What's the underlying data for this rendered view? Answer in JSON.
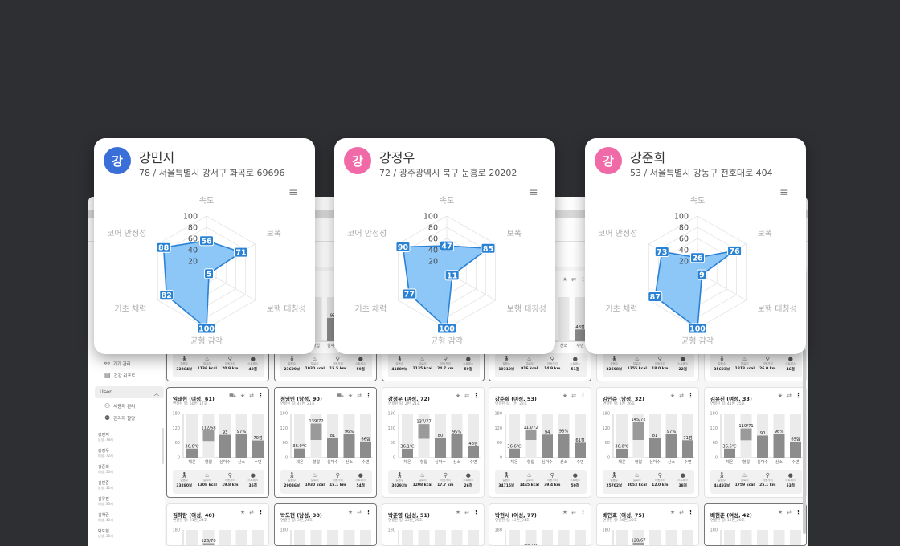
{
  "colors": {
    "background": "#2e2f32",
    "radar_fill": "#7fc1f6",
    "radar_stroke": "#2a82d4",
    "label_box": "#2a82d4",
    "avatar_blue": "#3b6fd8",
    "avatar_pink": "#f06aa8",
    "bar": "#8c8c8c",
    "bar_bg": "#ebebeb"
  },
  "sidebar": {
    "items": [
      {
        "label": "기기 관리",
        "icon": "link-icon"
      },
      {
        "label": "건강 리포트",
        "icon": "report-icon"
      }
    ],
    "section": {
      "label": "User",
      "icon": "chevron-up-icon"
    },
    "sub_items": [
      {
        "label": "사용자 관리",
        "icon": "user-icon"
      },
      {
        "label": "관리자 할당",
        "icon": "users-icon"
      }
    ],
    "users": [
      {
        "name": "강민지",
        "info": "남성, 78세"
      },
      {
        "name": "강정우",
        "info": "여성, 72세"
      },
      {
        "name": "강준희",
        "info": "여성, 53세"
      },
      {
        "name": "김민준",
        "info": "남성, 32세"
      },
      {
        "name": "김유진",
        "info": "여성, 33세"
      },
      {
        "name": "김하람",
        "info": "여성, 40세"
      },
      {
        "name": "박도현",
        "info": "남성, 38세"
      }
    ]
  },
  "bar_chart": {
    "categories": [
      "체온",
      "혈압",
      "심박수",
      "산소",
      "수면"
    ],
    "yticks": [
      0,
      60,
      120,
      180
    ],
    "ylim": [
      0,
      180
    ]
  },
  "stat_labels": [
    "걸음수",
    "칼로리",
    "이동거리",
    "스트레스"
  ],
  "stat_icons": [
    "walk-icon",
    "fire-icon",
    "location-icon",
    "brain-icon"
  ],
  "cards": [
    {
      "row": 0,
      "col": 0,
      "selected": true,
      "chart": {},
      "stats": [
        "32264보",
        "1136 kcal",
        "20.9 km",
        "40점"
      ]
    },
    {
      "row": 0,
      "col": 1,
      "selected": true,
      "chart": {
        "hr": 95,
        "hr_label": "95"
      },
      "stats": [
        "23609보",
        "1030 kcal",
        "15.5 km",
        "59점"
      ]
    },
    {
      "row": 0,
      "col": 2,
      "selected": true,
      "chart": {},
      "stats": [
        "41809보",
        "2135 kcal",
        "24.7 km",
        "59점"
      ]
    },
    {
      "row": 0,
      "col": 3,
      "selected": true,
      "chart": {
        "sleep": 48,
        "sleep_label": "48점"
      },
      "stats": [
        "19319보",
        "916 kcal",
        "14.9 km",
        "51점"
      ]
    },
    {
      "row": 0,
      "col": 4,
      "chart": {},
      "stats": [
        "32598보",
        "1355 kcal",
        "18.0 km",
        "22점"
      ]
    },
    {
      "row": 0,
      "col": 5,
      "chart": {},
      "stats": [
        "35693보",
        "1813 kcal",
        "26.0 km",
        "46점"
      ]
    },
    {
      "row": 1,
      "col": 0,
      "selected": true,
      "alert": true,
      "name": "임태현 (여성, 61)",
      "ring": "연결된 링: 50번_17호",
      "chart": {
        "temp": 36.6,
        "temp_label": "36.6℃",
        "sys": 112,
        "dia": 68,
        "bp_label": "112/68",
        "hr": 93,
        "hr_label": "93",
        "o2": 97,
        "o2_label": "97%",
        "sleep": 70,
        "sleep_label": "70점"
      },
      "stats": [
        "33280보",
        "1308 kcal",
        "19.8 km",
        "35점"
      ]
    },
    {
      "row": 1,
      "col": 1,
      "selected": true,
      "alert": true,
      "name": "정영민 (남성, 90)",
      "ring": "연결된 링: 44번_21호",
      "chart": {
        "temp": 36.9,
        "temp_label": "36.9℃",
        "sys": 139,
        "dia": 72,
        "bp_label": "139/72",
        "hr": 81,
        "hr_label": "81",
        "o2": 96,
        "o2_label": "96%",
        "sleep": 66,
        "sleep_label": "66점"
      },
      "stats": [
        "29036보",
        "1030 kcal",
        "15.1 km",
        "54점"
      ]
    },
    {
      "row": 1,
      "col": 2,
      "name": "강정우 (여성, 72)",
      "ring": "연결된 링: 2번_21호",
      "chart": {
        "temp": 36.1,
        "temp_label": "36.1℃",
        "sys": 137,
        "dia": 77,
        "bp_label": "137/77",
        "hr": 80,
        "hr_label": "80",
        "o2": 95,
        "o2_label": "95%",
        "sleep": 48,
        "sleep_label": "48점"
      },
      "stats": [
        "30293보",
        "1208 kcal",
        "17.7 km",
        "26점"
      ]
    },
    {
      "row": 1,
      "col": 3,
      "name": "강준희 (여성, 53)",
      "ring": "연결된 링: 7번_22호",
      "chart": {
        "temp": 36.6,
        "temp_label": "36.6℃",
        "sys": 113,
        "dia": 72,
        "bp_label": "113/72",
        "hr": 94,
        "hr_label": "94",
        "o2": 98,
        "o2_label": "98%",
        "sleep": 61,
        "sleep_label": "61점"
      },
      "stats": [
        "34715보",
        "1445 kcal",
        "39.4 km",
        "50점"
      ]
    },
    {
      "row": 1,
      "col": 4,
      "name": "김민준 (남성, 32)",
      "ring": "연결된 링: 1번_26호",
      "chart": {
        "temp": 36.0,
        "temp_label": "36.0℃",
        "sys": 145,
        "dia": 72,
        "bp_label": "145/72",
        "hr": 81,
        "hr_label": "81",
        "o2": 97,
        "o2_label": "97%",
        "sleep": 71,
        "sleep_label": "71점"
      },
      "stats": [
        "25702보",
        "3053 kcal",
        "12.0 km",
        "38점"
      ]
    },
    {
      "row": 1,
      "col": 5,
      "name": "김유진 (여성, 33)",
      "ring": "연결된 링: 41번_25호",
      "chart": {
        "temp": 36.5,
        "temp_label": "36.5℃",
        "sys": 119,
        "dia": 71,
        "bp_label": "119/71",
        "hr": 90,
        "hr_label": "90",
        "o2": 96,
        "o2_label": "96%",
        "sleep": 65,
        "sleep_label": "65점"
      },
      "stats": [
        "44493보",
        "1759 kcal",
        "25.1 km",
        "53점"
      ]
    },
    {
      "row": 2,
      "col": 0,
      "name": "김하람 (여성, 40)",
      "ring": "연결된 링: 21번_24호",
      "chart": {
        "sys": 126,
        "dia": 70,
        "bp_label": "126/70"
      }
    },
    {
      "row": 2,
      "col": 1,
      "selected": true,
      "name": "박도현 (남성, 38)",
      "ring": "연결된 링: 3번_24호",
      "chart": {}
    },
    {
      "row": 2,
      "col": 2,
      "name": "박준영 (남성, 51)",
      "ring": "연결된 링: 23번_25호",
      "chart": {}
    },
    {
      "row": 2,
      "col": 3,
      "name": "박현서 (여성, 77)",
      "ring": "연결된 링: 43번_24호",
      "chart": {
        "sys": 105,
        "dia": 76,
        "bp_label": "105/76"
      }
    },
    {
      "row": 2,
      "col": 4,
      "name": "배민호 (여성, 75)",
      "ring": "연결된 링: 30번_20호",
      "chart": {
        "sys": 128,
        "dia": 67,
        "bp_label": "128/67"
      }
    },
    {
      "row": 2,
      "col": 5,
      "selected": true,
      "name": "배현준 (여성, 42)",
      "ring": "연결된 링: 16번_20호",
      "chart": {}
    }
  ],
  "radar": {
    "axes": [
      "속도",
      "보폭",
      "보행 대칭성",
      "균형 감각",
      "기초 체력",
      "코어 안정성"
    ],
    "ticks": [
      20,
      40,
      60,
      80,
      100
    ],
    "range": [
      0,
      100
    ],
    "cards": [
      {
        "avatar": "강",
        "avatar_color": "#3b6fd8",
        "name": "강민지",
        "subtitle": "78 / 서울특별시 강서구 화곡로 69696",
        "values": [
          56,
          71,
          5,
          100,
          82,
          88
        ]
      },
      {
        "avatar": "강",
        "avatar_color": "#f06aa8",
        "name": "강정우",
        "subtitle": "72 / 광주광역시 북구 문흥로 20202",
        "values": [
          47,
          85,
          11,
          100,
          77,
          90
        ]
      },
      {
        "avatar": "강",
        "avatar_color": "#f06aa8",
        "name": "강준희",
        "subtitle": "53 / 서울특별시 강동구 천호대로 404",
        "values": [
          26,
          76,
          9,
          100,
          87,
          73
        ]
      }
    ]
  }
}
